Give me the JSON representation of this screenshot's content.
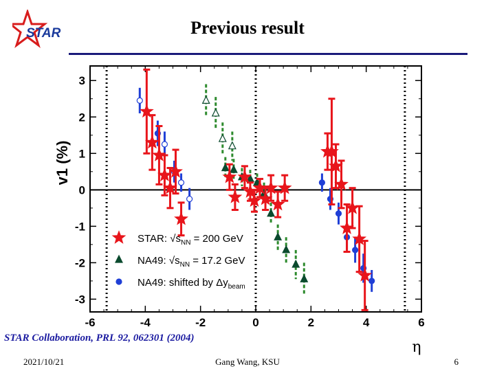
{
  "slide": {
    "title": "Previous result",
    "logo_text": "STAR",
    "citation": "STAR Collaboration, PRL 92, 062301 (2004)",
    "footer_date": "2021/10/21",
    "footer_author": "Gang Wang, KSU",
    "footer_page": "6",
    "colors": {
      "rule": "#1a1a7a",
      "citation": "#1a1aa0",
      "logo_star": "#d81c1c",
      "logo_text": "#1a3a9c"
    }
  },
  "chart_data": {
    "type": "scatter",
    "xlabel": "η",
    "ylabel": "v1 (%)",
    "xlim": [
      -6,
      6
    ],
    "ylim": [
      -3.35,
      3.4
    ],
    "xticks": [
      -6,
      -4,
      -2,
      0,
      2,
      4,
      6
    ],
    "yticks": [
      -3,
      -2,
      -1,
      0,
      1,
      2,
      3
    ],
    "reference_lines": {
      "horizontal_y": 0,
      "vertical_dotted_x": [
        -5.4,
        0,
        5.4
      ]
    },
    "legend_position": "lower-left",
    "legend": [
      {
        "label_prefix": "STAR: ",
        "sqrt": "s",
        "sub": "NN",
        "label_suffix": " = 200 GeV",
        "marker": "star",
        "color": "#e8151b"
      },
      {
        "label_prefix": "NA49: ",
        "sqrt": "s",
        "sub": "NN",
        "label_suffix": " = 17.2 GeV",
        "marker": "triangle",
        "color": "#0b4a2e"
      },
      {
        "label_prefix": "NA49: shifted by  Δy",
        "sub": "beam",
        "label_suffix": "",
        "marker": "circle",
        "color": "#1f3fd6"
      }
    ],
    "series": [
      {
        "name": "STAR: √sNN = 200 GeV",
        "marker": "star",
        "color": "#e8151b",
        "errcolor": "#e8151b",
        "points": [
          {
            "x": -3.95,
            "y": 2.15,
            "err": 1.15,
            "filled": true
          },
          {
            "x": -3.75,
            "y": 1.3,
            "err": 0.75,
            "filled": true
          },
          {
            "x": -3.5,
            "y": 0.95,
            "err": 0.8,
            "filled": true
          },
          {
            "x": -3.3,
            "y": 0.4,
            "err": 0.55,
            "filled": true
          },
          {
            "x": -3.1,
            "y": 0.05,
            "err": 0.55,
            "filled": true
          },
          {
            "x": -2.9,
            "y": 0.5,
            "err": 0.6,
            "filled": true
          },
          {
            "x": -2.7,
            "y": -0.8,
            "err": 0.45,
            "filled": true
          },
          {
            "x": -0.95,
            "y": 0.35,
            "err": 0.35,
            "filled": true
          },
          {
            "x": -0.75,
            "y": -0.2,
            "err": 0.35,
            "filled": true
          },
          {
            "x": -0.4,
            "y": 0.35,
            "err": 0.3,
            "filled": true
          },
          {
            "x": -0.2,
            "y": -0.05,
            "err": 0.25,
            "filled": true
          },
          {
            "x": -0.05,
            "y": -0.3,
            "err": 0.3,
            "filled": true
          },
          {
            "x": 0.15,
            "y": 0.05,
            "err": 0.25,
            "filled": true
          },
          {
            "x": 0.35,
            "y": -0.25,
            "err": 0.3,
            "filled": true
          },
          {
            "x": 0.55,
            "y": 0.05,
            "err": 0.35,
            "filled": true
          },
          {
            "x": 0.8,
            "y": -0.4,
            "err": 0.35,
            "filled": true
          },
          {
            "x": 1.05,
            "y": 0.05,
            "err": 0.35,
            "filled": true
          },
          {
            "x": 2.6,
            "y": 1.05,
            "err": 0.5,
            "filled": true
          },
          {
            "x": 2.75,
            "y": 1.05,
            "err": 1.45,
            "filled": true
          },
          {
            "x": 2.9,
            "y": 0.65,
            "err": 0.6,
            "filled": true
          },
          {
            "x": 3.1,
            "y": 0.15,
            "err": 0.65,
            "filled": true
          },
          {
            "x": 3.3,
            "y": -1.05,
            "err": 0.65,
            "filled": true
          },
          {
            "x": 3.5,
            "y": -0.5,
            "err": 0.55,
            "filled": true
          },
          {
            "x": 3.75,
            "y": -1.35,
            "err": 0.9,
            "filled": true
          },
          {
            "x": 3.95,
            "y": -2.35,
            "err": 0.95,
            "filled": true
          }
        ]
      },
      {
        "name": "NA49: √sNN = 17.2 GeV",
        "marker": "triangle",
        "color": "#0b4a2e",
        "errcolor": "#2e8b2e",
        "points": [
          {
            "x": -1.8,
            "y": 2.45,
            "err": 0.45,
            "filled": false
          },
          {
            "x": -1.45,
            "y": 2.1,
            "err": 0.45,
            "filled": false
          },
          {
            "x": -1.2,
            "y": 1.4,
            "err": 0.45,
            "filled": false
          },
          {
            "x": -0.85,
            "y": 1.2,
            "err": 0.4,
            "filled": false
          },
          {
            "x": -1.1,
            "y": 0.6,
            "err": 0.3,
            "filled": true
          },
          {
            "x": -0.8,
            "y": 0.55,
            "err": 0.3,
            "filled": true
          },
          {
            "x": -0.5,
            "y": 0.35,
            "err": 0.25,
            "filled": true
          },
          {
            "x": -0.2,
            "y": 0.3,
            "err": 0.25,
            "filled": true
          },
          {
            "x": 0.05,
            "y": 0.2,
            "err": 0.25,
            "filled": true
          },
          {
            "x": 0.3,
            "y": -0.1,
            "err": 0.3,
            "filled": true
          },
          {
            "x": 0.55,
            "y": -0.65,
            "err": 0.3,
            "filled": true
          },
          {
            "x": 0.8,
            "y": -1.3,
            "err": 0.35,
            "filled": true
          },
          {
            "x": 1.1,
            "y": -1.65,
            "err": 0.35,
            "filled": true
          },
          {
            "x": 1.45,
            "y": -2.05,
            "err": 0.4,
            "filled": true
          },
          {
            "x": 1.75,
            "y": -2.45,
            "err": 0.45,
            "filled": true
          }
        ]
      },
      {
        "name": "NA49: shifted by Δybeam",
        "marker": "circle",
        "color": "#1f3fd6",
        "errcolor": "#1f3fd6",
        "points": [
          {
            "x": -4.2,
            "y": 2.45,
            "err": 0.35,
            "filled": false
          },
          {
            "x": -3.55,
            "y": 1.55,
            "err": 0.35,
            "filled": true
          },
          {
            "x": -3.3,
            "y": 1.25,
            "err": 0.35,
            "filled": false
          },
          {
            "x": -2.95,
            "y": 0.5,
            "err": 0.3,
            "filled": false
          },
          {
            "x": -2.7,
            "y": 0.2,
            "err": 0.25,
            "filled": false
          },
          {
            "x": -2.4,
            "y": -0.25,
            "err": 0.3,
            "filled": false
          },
          {
            "x": 2.4,
            "y": 0.2,
            "err": 0.25,
            "filled": true
          },
          {
            "x": 2.7,
            "y": -0.25,
            "err": 0.3,
            "filled": true
          },
          {
            "x": 3.0,
            "y": -0.65,
            "err": 0.3,
            "filled": true
          },
          {
            "x": 3.3,
            "y": -1.3,
            "err": 0.35,
            "filled": true
          },
          {
            "x": 3.6,
            "y": -1.65,
            "err": 0.35,
            "filled": true
          },
          {
            "x": 3.9,
            "y": -2.15,
            "err": 0.4,
            "filled": true
          },
          {
            "x": 4.2,
            "y": -2.5,
            "err": 0.3,
            "filled": true
          }
        ]
      }
    ]
  }
}
